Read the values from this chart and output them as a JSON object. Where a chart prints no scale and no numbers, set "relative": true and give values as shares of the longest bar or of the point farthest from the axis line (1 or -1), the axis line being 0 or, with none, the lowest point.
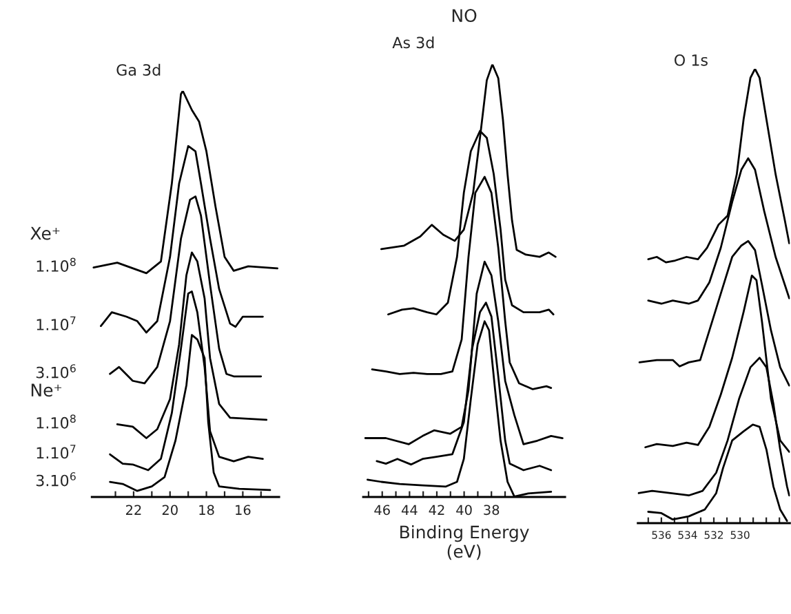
{
  "chart_data": [
    {
      "type": "line",
      "relative": true,
      "subtitle": "Ga 3d",
      "annotations": [
        "Xe⁺",
        "Ne⁺"
      ],
      "xlim": [
        24.3,
        14.0
      ],
      "xticks": [
        {
          "value": 23,
          "label": null
        },
        22,
        {
          "value": 21,
          "label": null
        },
        20,
        {
          "value": 19,
          "label": null
        },
        18,
        {
          "value": 17,
          "label": null
        },
        16,
        {
          "value": 15,
          "label": null
        }
      ],
      "tick_labels": "x",
      "grid": false,
      "legend": false,
      "series": [
        {
          "name": "1.10$^{8}$",
          "color": "#000000",
          "x": [
            24.2,
            22.9,
            21.3,
            20.5,
            19.9,
            19.4,
            19.3,
            18.8,
            18.4,
            18.0,
            17.5,
            17.0,
            16.5,
            15.7,
            14.1
          ],
          "values": [
            0.565,
            0.577,
            0.551,
            0.58,
            0.772,
            0.992,
            1.0,
            0.953,
            0.924,
            0.851,
            0.715,
            0.591,
            0.557,
            0.568,
            0.563
          ]
        },
        {
          "name": "1.10$^{7}$",
          "color": "#000000",
          "x": [
            23.8,
            23.2,
            22.4,
            21.8,
            21.3,
            20.7,
            20.0,
            19.5,
            19.0,
            18.6,
            18.3,
            17.8,
            17.3,
            16.7,
            16.4,
            16.0,
            14.9
          ],
          "values": [
            0.421,
            0.455,
            0.444,
            0.433,
            0.405,
            0.433,
            0.591,
            0.772,
            0.864,
            0.851,
            0.772,
            0.636,
            0.512,
            0.427,
            0.419,
            0.444,
            0.444
          ]
        },
        {
          "name": "3.10$^{6}$",
          "color": "#000000",
          "x": [
            23.3,
            22.8,
            22.05,
            21.4,
            20.7,
            20.0,
            19.4,
            18.9,
            18.6,
            18.3,
            17.8,
            17.3,
            16.9,
            16.5,
            15.0
          ],
          "values": [
            0.303,
            0.32,
            0.286,
            0.28,
            0.32,
            0.433,
            0.636,
            0.732,
            0.74,
            0.693,
            0.523,
            0.365,
            0.303,
            0.297,
            0.297
          ]
        },
        {
          "name": "1.10$^{8}$",
          "color": "#000000",
          "x": [
            22.9,
            22.05,
            21.3,
            20.7,
            20.0,
            19.5,
            19.1,
            18.8,
            18.5,
            18.1,
            17.8,
            17.3,
            16.7,
            14.7
          ],
          "values": [
            0.179,
            0.173,
            0.145,
            0.167,
            0.241,
            0.376,
            0.546,
            0.602,
            0.58,
            0.489,
            0.342,
            0.229,
            0.195,
            0.19
          ]
        },
        {
          "name": "1.10$^{7}$",
          "color": "#000000",
          "x": [
            23.3,
            22.6,
            22.05,
            21.2,
            20.5,
            19.9,
            19.4,
            19.0,
            18.8,
            18.5,
            18.1,
            17.8,
            17.3,
            16.5,
            15.7,
            14.9
          ],
          "values": [
            0.105,
            0.082,
            0.08,
            0.066,
            0.094,
            0.207,
            0.365,
            0.501,
            0.506,
            0.455,
            0.32,
            0.162,
            0.099,
            0.088,
            0.099,
            0.094
          ]
        },
        {
          "name": "3.10$^{6}$",
          "color": "#000000",
          "x": [
            23.3,
            22.6,
            21.8,
            21.0,
            20.3,
            19.7,
            19.1,
            18.8,
            18.5,
            18.1,
            17.9,
            17.6,
            17.3,
            16.2,
            14.5
          ],
          "values": [
            0.037,
            0.032,
            0.015,
            0.026,
            0.049,
            0.139,
            0.275,
            0.399,
            0.388,
            0.342,
            0.184,
            0.06,
            0.026,
            0.02,
            0.017
          ]
        }
      ]
    },
    {
      "type": "line",
      "relative": true,
      "title": "NO",
      "subtitle": "As 3d",
      "xlabel": "Binding Energy\n(eV)",
      "xlim": [
        47.4,
        32.6
      ],
      "xticks": [
        {
          "value": 47,
          "label": null
        },
        46,
        {
          "value": 45,
          "label": null
        },
        44,
        {
          "value": 43,
          "label": null
        },
        42,
        {
          "value": 41,
          "label": null
        },
        40,
        {
          "value": 39,
          "label": null
        },
        38,
        {
          "value": 37,
          "label": null
        }
      ],
      "tick_labels": "x",
      "grid": false,
      "legend": false,
      "series": [
        {
          "color": "#000000",
          "x": [
            46.07,
            44.39,
            43.21,
            42.37,
            41.53,
            40.69,
            40.02,
            39.34,
            38.84,
            38.34,
            37.93,
            37.5,
            37.16,
            36.82,
            36.49,
            36.15,
            35.48,
            34.47,
            33.8,
            33.3
          ],
          "values": [
            0.573,
            0.581,
            0.602,
            0.629,
            0.606,
            0.592,
            0.618,
            0.703,
            0.83,
            0.963,
            1.0,
            0.968,
            0.873,
            0.746,
            0.639,
            0.571,
            0.56,
            0.555,
            0.565,
            0.555
          ]
        },
        {
          "color": "#000000",
          "x": [
            45.56,
            44.55,
            43.71,
            42.71,
            42.03,
            41.19,
            40.52,
            40.02,
            39.51,
            38.84,
            38.34,
            37.83,
            37.33,
            36.99,
            36.49,
            35.65,
            34.47,
            33.8,
            33.46
          ],
          "values": [
            0.422,
            0.433,
            0.436,
            0.427,
            0.422,
            0.449,
            0.555,
            0.703,
            0.799,
            0.846,
            0.83,
            0.746,
            0.618,
            0.502,
            0.443,
            0.427,
            0.427,
            0.433,
            0.422
          ]
        },
        {
          "color": "#000000",
          "x": [
            46.74,
            45.73,
            44.72,
            43.71,
            42.71,
            41.7,
            40.86,
            40.18,
            39.68,
            39.18,
            38.5,
            38.0,
            37.5,
            36.99,
            36.66,
            35.98,
            34.97,
            33.97,
            33.63
          ],
          "values": [
            0.295,
            0.29,
            0.284,
            0.287,
            0.284,
            0.284,
            0.29,
            0.364,
            0.555,
            0.703,
            0.74,
            0.703,
            0.576,
            0.406,
            0.311,
            0.263,
            0.249,
            0.256,
            0.252
          ]
        },
        {
          "color": "#000000",
          "x": [
            47.24,
            45.73,
            44.05,
            43.04,
            42.2,
            41.03,
            40.18,
            39.68,
            39.08,
            38.5,
            38.0,
            37.5,
            36.99,
            36.32,
            35.65,
            34.64,
            33.63,
            32.79
          ],
          "values": [
            0.136,
            0.136,
            0.122,
            0.141,
            0.154,
            0.146,
            0.162,
            0.247,
            0.47,
            0.544,
            0.512,
            0.406,
            0.268,
            0.189,
            0.122,
            0.13,
            0.141,
            0.136
          ]
        },
        {
          "color": "#000000",
          "x": [
            46.4,
            45.73,
            44.89,
            43.88,
            43.04,
            42.03,
            40.86,
            40.02,
            39.41,
            38.84,
            38.4,
            38.0,
            37.5,
            36.99,
            36.66,
            35.65,
            34.47,
            33.63
          ],
          "values": [
            0.083,
            0.077,
            0.088,
            0.075,
            0.088,
            0.093,
            0.099,
            0.173,
            0.343,
            0.427,
            0.449,
            0.417,
            0.279,
            0.13,
            0.077,
            0.062,
            0.072,
            0.062
          ]
        },
        {
          "color": "#000000",
          "x": [
            47.08,
            46.07,
            44.72,
            43.04,
            41.36,
            40.52,
            40.02,
            39.51,
            39.01,
            38.5,
            38.17,
            37.73,
            37.33,
            36.82,
            36.32,
            35.31,
            33.63
          ],
          "values": [
            0.04,
            0.035,
            0.03,
            0.027,
            0.024,
            0.035,
            0.088,
            0.226,
            0.353,
            0.406,
            0.385,
            0.247,
            0.13,
            0.035,
            0.001,
            0.008,
            0.012
          ]
        }
      ]
    },
    {
      "type": "line",
      "relative": true,
      "subtitle": "O 1s",
      "xlim": [
        537.8,
        526.2
      ],
      "xticks": [
        {
          "value": 537,
          "label": null
        },
        536,
        {
          "value": 535,
          "label": null
        },
        534,
        {
          "value": 533,
          "label": null
        },
        532,
        {
          "value": 531,
          "label": null
        },
        530,
        {
          "value": 529,
          "label": null
        },
        {
          "value": 528,
          "label": null
        },
        {
          "value": 527,
          "label": null
        }
      ],
      "tick_labels": "x",
      "grid": false,
      "legend": false,
      "series": [
        {
          "color": "#000000",
          "x": [
            537.0,
            536.35,
            535.65,
            534.95,
            534.08,
            533.21,
            532.52,
            531.64,
            530.95,
            530.25,
            529.73,
            529.21,
            528.86,
            528.51,
            527.99,
            527.29,
            526.59,
            526.25
          ],
          "values": [
            0.581,
            0.586,
            0.574,
            0.578,
            0.586,
            0.581,
            0.606,
            0.657,
            0.677,
            0.768,
            0.889,
            0.98,
            1.0,
            0.98,
            0.889,
            0.768,
            0.667,
            0.616
          ]
        },
        {
          "color": "#000000",
          "x": [
            537.0,
            536.0,
            535.13,
            533.91,
            533.21,
            532.34,
            531.47,
            530.6,
            529.9,
            529.38,
            528.86,
            528.16,
            527.29,
            526.59,
            526.25
          ],
          "values": [
            0.49,
            0.483,
            0.49,
            0.483,
            0.49,
            0.53,
            0.606,
            0.707,
            0.778,
            0.803,
            0.778,
            0.687,
            0.586,
            0.525,
            0.495
          ]
        },
        {
          "color": "#000000",
          "x": [
            537.67,
            536.35,
            535.13,
            534.61,
            533.91,
            533.04,
            532.34,
            531.47,
            530.6,
            529.9,
            529.38,
            528.86,
            528.33,
            527.64,
            526.94,
            526.25
          ],
          "values": [
            0.354,
            0.359,
            0.359,
            0.345,
            0.354,
            0.359,
            0.424,
            0.505,
            0.586,
            0.611,
            0.621,
            0.601,
            0.525,
            0.424,
            0.343,
            0.303
          ]
        },
        {
          "color": "#000000",
          "x": [
            537.22,
            536.35,
            535.13,
            534.08,
            533.21,
            532.34,
            531.47,
            530.6,
            529.73,
            529.1,
            528.75,
            528.33,
            527.64,
            526.94,
            526.25
          ],
          "values": [
            0.167,
            0.174,
            0.17,
            0.177,
            0.172,
            0.212,
            0.283,
            0.364,
            0.465,
            0.545,
            0.535,
            0.444,
            0.273,
            0.182,
            0.157
          ]
        },
        {
          "color": "#000000",
          "x": [
            537.74,
            536.7,
            535.3,
            533.91,
            532.86,
            531.82,
            530.95,
            530.08,
            529.21,
            528.51,
            527.99,
            527.46,
            526.94,
            526.42,
            526.25
          ],
          "values": [
            0.066,
            0.071,
            0.066,
            0.061,
            0.071,
            0.111,
            0.182,
            0.273,
            0.343,
            0.364,
            0.343,
            0.263,
            0.162,
            0.081,
            0.061
          ]
        },
        {
          "color": "#000000",
          "x": [
            537.0,
            536.0,
            535.13,
            533.91,
            532.69,
            531.82,
            531.3,
            530.6,
            529.73,
            529.03,
            528.51,
            527.99,
            527.46,
            526.94,
            526.42
          ],
          "values": [
            0.025,
            0.022,
            0.008,
            0.015,
            0.03,
            0.066,
            0.121,
            0.182,
            0.202,
            0.217,
            0.212,
            0.162,
            0.081,
            0.03,
            0.005
          ]
        }
      ]
    }
  ]
}
